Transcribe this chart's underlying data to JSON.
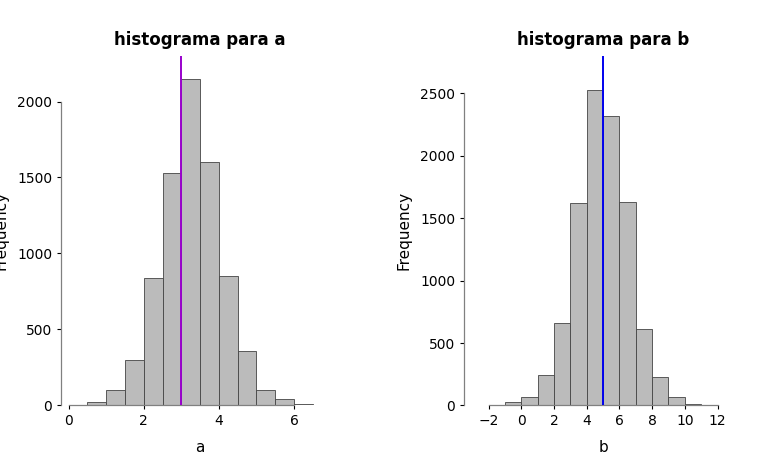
{
  "title_a": "histograma para a",
  "title_b": "histograma para b",
  "xlabel_a": "a",
  "xlabel_b": "b",
  "ylabel": "Frequency",
  "hist_a_bins": [
    0.5,
    1.0,
    1.5,
    2.0,
    2.5,
    3.0,
    3.5,
    4.0,
    4.5,
    5.0,
    5.5,
    6.0,
    6.5
  ],
  "hist_a_counts": [
    20,
    100,
    300,
    840,
    1530,
    2150,
    1600,
    850,
    360,
    100,
    40,
    8
  ],
  "vline_a": 3.0,
  "vline_a_color": "#9900CC",
  "xlim_a": [
    -0.2,
    7.2
  ],
  "xticks_a": [
    0,
    2,
    4,
    6
  ],
  "ylim_a": [
    0,
    2300
  ],
  "yticks_a": [
    0,
    500,
    1000,
    1500,
    2000
  ],
  "hist_b_bins": [
    -1.0,
    0.0,
    1.0,
    2.0,
    3.0,
    4.0,
    5.0,
    6.0,
    7.0,
    8.0,
    9.0,
    10.0,
    11.0
  ],
  "hist_b_counts": [
    30,
    65,
    245,
    660,
    1620,
    2530,
    2320,
    1630,
    610,
    230,
    65,
    12
  ],
  "vline_b": 5.0,
  "vline_b_color": "#0000EE",
  "xlim_b": [
    -3.5,
    13.5
  ],
  "xticks_b": [
    -2,
    0,
    2,
    4,
    6,
    8,
    10,
    12
  ],
  "ylim_b": [
    0,
    2800
  ],
  "yticks_b": [
    0,
    500,
    1000,
    1500,
    2000,
    2500
  ],
  "bar_color": "#BBBBBB",
  "bar_edge_color": "#444444",
  "background_color": "#FFFFFF",
  "title_fontsize": 12,
  "label_fontsize": 11,
  "tick_fontsize": 10,
  "title_fontweight": "bold"
}
